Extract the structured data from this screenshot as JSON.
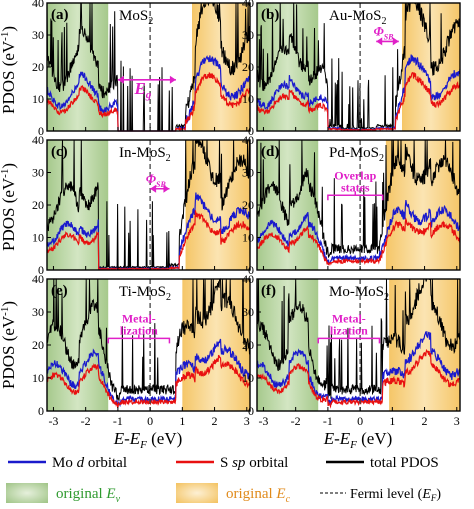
{
  "figure": {
    "ylabel_html": "PDOS (eV",
    "ylabel_sup": "-1",
    "ylabel_tail": ")",
    "xlabel_parts": [
      "E",
      "-",
      "E",
      "F",
      " (eV)"
    ]
  },
  "legend": {
    "mo_d": "Mo d orbital",
    "mo_d_prefix": "Mo ",
    "mo_d_italic": "d",
    "mo_d_suffix": " orbital",
    "s_sp_prefix": "S ",
    "s_sp_italic": "sp",
    "s_sp_suffix": " orbital",
    "total": "total PDOS",
    "ev_prefix": "original ",
    "ev_sym": "E",
    "ev_sub": "v",
    "ec_prefix": "original ",
    "ec_sym": "E",
    "ec_sub": "c",
    "fermi_prefix": "Fermi level (",
    "fermi_sym": "E",
    "fermi_sub": "F",
    "fermi_suffix": ")"
  },
  "colors": {
    "mo_d": "#1a1acc",
    "s_sp": "#e81010",
    "total": "#000000",
    "valence_shade": "#b9d6a4",
    "conduction_shade": "#f7d27a",
    "eg_arrow": "#e020c8",
    "text_green": "#2e9a2e",
    "text_orange": "#e08a1a"
  },
  "chart_data": [
    {
      "type": "line",
      "panel_label": "(a)",
      "title": "MoS",
      "title_sub": "2",
      "xlim": [
        -3.2,
        3.1
      ],
      "ylim": [
        0,
        40
      ],
      "xticks": [
        -3,
        -2,
        -1,
        0,
        1,
        2,
        3
      ],
      "yticks": [
        0,
        10,
        20,
        30,
        40
      ],
      "valence_band": [
        -3.2,
        -1.3
      ],
      "conduction_band": [
        1.3,
        3.1
      ],
      "gap": [
        -1.0,
        0.8
      ],
      "fermi": 0,
      "annotation": {
        "text": "E",
        "sub": "g",
        "x": [
          -1.0,
          0.8
        ],
        "y": 16
      }
    },
    {
      "type": "line",
      "panel_label": "(b)",
      "title": "Au-MoS",
      "title_sub": "2",
      "xlim": [
        -3.2,
        3.1
      ],
      "ylim": [
        0,
        40
      ],
      "xticks": [
        -3,
        -2,
        -1,
        0,
        1,
        2,
        3
      ],
      "yticks": [
        0,
        10,
        20,
        30,
        40
      ],
      "valence_band": [
        -3.2,
        -1.3
      ],
      "conduction_band": [
        1.3,
        3.1
      ],
      "gap": [
        -0.6,
        0.5
      ],
      "fermi": 0,
      "annotation": {
        "text": "Φ",
        "sub": "SB",
        "x": [
          0.5,
          1.2
        ],
        "y": 28
      }
    },
    {
      "type": "line",
      "panel_label": "(c)",
      "title": "In-MoS",
      "title_sub": "2",
      "xlim": [
        -3.2,
        3.1
      ],
      "ylim": [
        0,
        40
      ],
      "xticks": [
        -3,
        -2,
        -1,
        0,
        1,
        2,
        3
      ],
      "yticks": [
        0,
        10,
        20,
        30,
        40
      ],
      "valence_band": [
        -3.2,
        -1.3
      ],
      "conduction_band": [
        1.1,
        3.1
      ],
      "gap": [
        -1.6,
        0.6
      ],
      "fermi": 0,
      "annotation": {
        "text": "Φ",
        "sub": "SB",
        "x": [
          0,
          0.6
        ],
        "y": 25
      }
    },
    {
      "type": "line",
      "panel_label": "(d)",
      "title": "Pd-MoS",
      "title_sub": "2",
      "xlim": [
        -3.2,
        3.1
      ],
      "ylim": [
        0,
        40
      ],
      "xticks": [
        -3,
        -2,
        -1,
        0,
        1,
        2,
        3
      ],
      "yticks": [
        0,
        10,
        20,
        30,
        40
      ],
      "valence_band": [
        -3.2,
        -1.3
      ],
      "conduction_band": [
        0.8,
        3.1
      ],
      "gap": null,
      "fermi": 0,
      "annotation": {
        "text_lines": [
          "Overlap",
          "states"
        ],
        "x": [
          -1.0,
          0.7
        ],
        "y": 23
      }
    },
    {
      "type": "line",
      "panel_label": "(e)",
      "title": "Ti-MoS",
      "title_sub": "2",
      "xlim": [
        -3.2,
        3.1
      ],
      "ylim": [
        0,
        40
      ],
      "xticks": [
        -3,
        -2,
        -1,
        0,
        1,
        2,
        3
      ],
      "yticks": [
        0,
        10,
        20,
        30,
        40
      ],
      "valence_band": [
        -3.2,
        -1.3
      ],
      "conduction_band": [
        1.0,
        3.1
      ],
      "gap": null,
      "fermi": 0,
      "annotation": {
        "text_lines": [
          "Metal-",
          "lization"
        ],
        "x": [
          -1.3,
          0.6
        ],
        "y": 22
      }
    },
    {
      "type": "line",
      "panel_label": "(f)",
      "title": "Mo-MoS",
      "title_sub": "2",
      "xlim": [
        -3.2,
        3.1
      ],
      "ylim": [
        0,
        40
      ],
      "xticks": [
        -3,
        -2,
        -1,
        0,
        1,
        2,
        3
      ],
      "yticks": [
        0,
        10,
        20,
        30,
        40
      ],
      "valence_band": [
        -3.2,
        -1.3
      ],
      "conduction_band": [
        0.9,
        3.1
      ],
      "gap": null,
      "fermi": 0,
      "annotation": {
        "text_lines": [
          "Metal-",
          "lization"
        ],
        "x": [
          -1.3,
          0.6
        ],
        "y": 22
      }
    }
  ]
}
